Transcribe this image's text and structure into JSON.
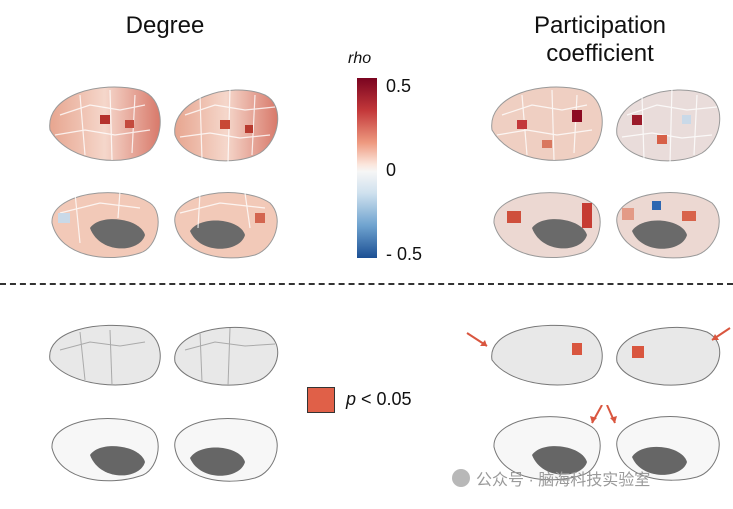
{
  "titles": {
    "degree": "Degree",
    "participation": "Participation\ncoefficient"
  },
  "colorbar": {
    "label": "rho",
    "ticks": [
      "0.5",
      "0",
      "- 0.5"
    ],
    "colors": [
      "#7a0420",
      "#c3383a",
      "#f6f6f6",
      "#6fa3cf",
      "#1b4f94"
    ]
  },
  "legend": {
    "p_symbol": "p",
    "p_text": " < 0.05",
    "color": "#e06048"
  },
  "watermark": "公众号 · 脑海科技实验室"
}
